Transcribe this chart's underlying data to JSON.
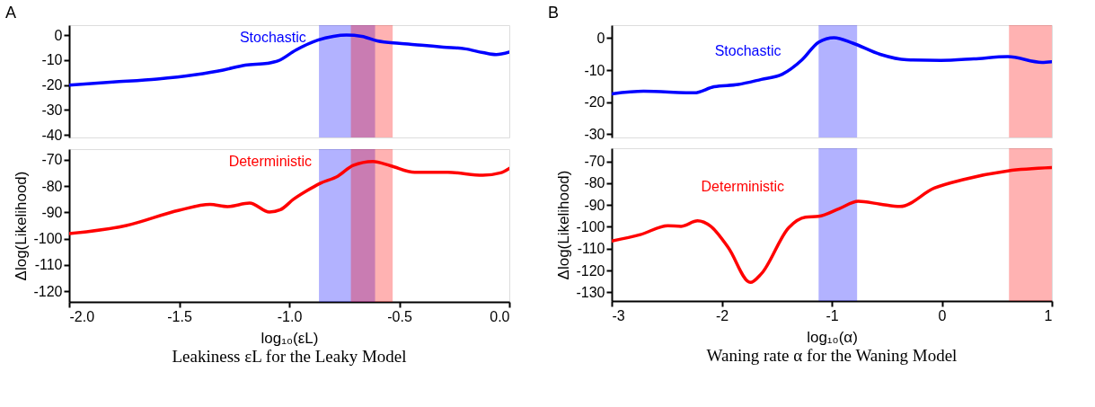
{
  "chart_data": [
    {
      "type": "line",
      "title": "A",
      "xlim": [
        -2,
        0
      ],
      "ylim": [
        -41,
        4
      ],
      "yticks": [
        0,
        -10,
        -20,
        -30,
        -40
      ],
      "tick_labels": "y",
      "line_style": "solid",
      "x": [
        -2,
        -1.8,
        -1.6,
        -1.43,
        -1.3,
        -1.2,
        -1.1,
        -1.05,
        -0.97,
        -0.87,
        -0.8,
        -0.74,
        -0.67,
        -0.6,
        -0.5,
        -0.4,
        -0.3,
        -0.2,
        -0.12,
        -0.06,
        0
      ],
      "series": [
        {
          "name": "Stochastic",
          "color": "#0000ff",
          "values": [
            -20,
            -18.8,
            -17.6,
            -15.9,
            -14,
            -12,
            -11.3,
            -10.3,
            -6,
            -2,
            -0.5,
            0,
            -0.5,
            -2.3,
            -3.3,
            -4,
            -4.8,
            -5.5,
            -7,
            -7.8,
            -6.8
          ]
        }
      ],
      "bands": [
        {
          "axis": "x",
          "from": -0.865,
          "to": -0.61,
          "color": "#0000ff"
        },
        {
          "axis": "x",
          "from": -0.72,
          "to": -0.53,
          "color": "#ff0000"
        }
      ]
    },
    {
      "type": "line",
      "xlabel": "log₁₀(εL)",
      "ylabel": "Δlog(Likelihood)",
      "xlim": [
        -2,
        0
      ],
      "ylim": [
        -124,
        -66
      ],
      "line_style": "solid",
      "xticks": [
        {
          "value": -2,
          "label": "-2.0"
        },
        -1.5,
        {
          "value": -1,
          "label": "-1.0"
        },
        -0.5,
        {
          "value": 0,
          "label": "0.0"
        }
      ],
      "yticks": [
        -70,
        -80,
        -90,
        -100,
        -110,
        -120
      ],
      "x": [
        -2,
        -1.74,
        -1.5,
        -1.36,
        -1.28,
        -1.18,
        -1.09,
        -1.04,
        -0.98,
        -0.92,
        -0.86,
        -0.78,
        -0.71,
        -0.62,
        -0.54,
        -0.43,
        -0.28,
        -0.12,
        -0.04,
        0
      ],
      "series": [
        {
          "name": "Deterministic",
          "color": "#ff0000",
          "values": [
            -98.1,
            -95,
            -89.2,
            -87,
            -87.8,
            -86.5,
            -89.9,
            -89,
            -85,
            -81.8,
            -79,
            -76.3,
            -72.2,
            -70.7,
            -72.3,
            -74.8,
            -74.8,
            -75.9,
            -75,
            -73.3
          ]
        }
      ],
      "bands": [
        {
          "axis": "x",
          "from": -0.865,
          "to": -0.61,
          "color": "#0000ff"
        },
        {
          "axis": "x",
          "from": -0.72,
          "to": -0.53,
          "color": "#ff0000"
        }
      ],
      "annotations": [
        "Leakiness εL for the Leaky Model"
      ]
    },
    {
      "type": "line",
      "title": "B",
      "xlim": [
        -3,
        1
      ],
      "ylim": [
        -31,
        4
      ],
      "yticks": [
        0,
        -10,
        -20,
        -30
      ],
      "tick_labels": "y",
      "line_style": "solid",
      "x": [
        -3,
        -2.71,
        -2.25,
        -2.07,
        -1.85,
        -1.64,
        -1.45,
        -1.27,
        -1.12,
        -0.98,
        -0.81,
        -0.56,
        -0.32,
        -0.01,
        0.29,
        0.6,
        0.91,
        1
      ],
      "series": [
        {
          "name": "Stochastic",
          "color": "#0000ff",
          "values": [
            -17.4,
            -16.6,
            -17.1,
            -15.2,
            -14.5,
            -12.9,
            -11.3,
            -6.8,
            -1.3,
            0.1,
            -1.6,
            -5.1,
            -6.8,
            -7,
            -6.5,
            -5.8,
            -7.6,
            -7.4
          ]
        }
      ],
      "bands": [
        {
          "axis": "x",
          "from": -1.12,
          "to": -0.77,
          "color": "#0000ff"
        },
        {
          "axis": "x",
          "from": 0.61,
          "to": 1,
          "color": "#ff0000"
        }
      ]
    },
    {
      "type": "line",
      "xlabel": "log₁₀(α)",
      "ylabel": "Δlog(Likelihood)",
      "xlim": [
        -3,
        1
      ],
      "ylim": [
        -134,
        -64
      ],
      "line_style": "solid",
      "xticks": [
        -3,
        -2,
        -1,
        0,
        1
      ],
      "yticks": [
        -70,
        -80,
        -90,
        -100,
        -110,
        -120,
        -130
      ],
      "x": [
        -3,
        -2.74,
        -2.49,
        -2.37,
        -2.22,
        -2.1,
        -1.94,
        -1.74,
        -1.64,
        -1.39,
        -1.24,
        -1.12,
        -0.93,
        -0.76,
        -0.56,
        -0.38,
        -0.07,
        0.2,
        0.6,
        1
      ],
      "series": [
        {
          "name": "Deterministic",
          "color": "#ff0000",
          "values": [
            -106.5,
            -103.6,
            -99.5,
            -99.8,
            -97.3,
            -99.8,
            -109.6,
            -125.5,
            -121.5,
            -100.3,
            -95.6,
            -95.2,
            -91.6,
            -88.3,
            -89.6,
            -90.7,
            -82.3,
            -78.3,
            -74.4,
            -72.9
          ]
        }
      ],
      "bands": [
        {
          "axis": "x",
          "from": -1.12,
          "to": -0.77,
          "color": "#0000ff"
        },
        {
          "axis": "x",
          "from": 0.61,
          "to": 1,
          "color": "#ff0000"
        }
      ],
      "annotations": [
        "Waning rate α for the Waning Model"
      ]
    }
  ]
}
